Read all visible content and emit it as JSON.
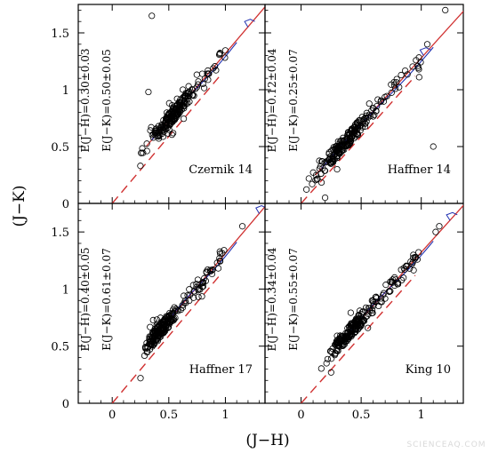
{
  "figure": {
    "xlabel": "(J−H)",
    "ylabel": "(J−K)",
    "watermark": "SCIENCEAQ.COM"
  },
  "colors": {
    "points": "#000000",
    "reddened_line": "#d03030",
    "intrinsic_line": "#d03030",
    "isochrone": "#2030b0",
    "frame": "#000000"
  },
  "chart_data": [
    {
      "type": "scatter",
      "name": "Czernik 14",
      "annotations": [
        "E(J−H)=0.30±0.03",
        "E(J−K)=0.50±0.05"
      ],
      "xlim": [
        -0.3,
        1.35
      ],
      "ylim": [
        0,
        1.75
      ],
      "xticks": [
        "0",
        "0.5",
        "1"
      ],
      "yticks": [
        "0",
        "0.5",
        "1",
        "1.5"
      ],
      "reddening": {
        "EJH": 0.3,
        "EJK": 0.5
      },
      "cluster_center": 0.55,
      "cluster_spread": 0.18,
      "extra_points": [
        [
          0.35,
          1.65
        ],
        [
          0.32,
          0.98
        ]
      ]
    },
    {
      "type": "scatter",
      "name": "Haffner 14",
      "annotations": [
        "E(J−H)=0.12±0.04",
        "E(J−K)=0.25±0.07"
      ],
      "xlim": [
        -0.3,
        1.35
      ],
      "ylim": [
        0,
        1.75
      ],
      "xticks": [
        "0",
        "0.5",
        "1"
      ],
      "yticks": [
        "0",
        "0.5",
        "1",
        "1.5"
      ],
      "reddening": {
        "EJH": 0.12,
        "EJK": 0.25
      },
      "cluster_center": 0.35,
      "cluster_spread": 0.2,
      "extra_points": [
        [
          1.05,
          1.4
        ],
        [
          1.2,
          1.7
        ],
        [
          1.1,
          0.5
        ],
        [
          0.3,
          0.3
        ],
        [
          0.2,
          0.05
        ]
      ]
    },
    {
      "type": "scatter",
      "name": "Haffner 17",
      "annotations": [
        "E(J−H)=0.40±0.05",
        "E(J−K)=0.61±0.07"
      ],
      "xlim": [
        -0.3,
        1.35
      ],
      "ylim": [
        0,
        1.75
      ],
      "xticks": [
        "0",
        "0.5",
        "1"
      ],
      "yticks": [
        "0",
        "0.5",
        "1",
        "1.5"
      ],
      "reddening": {
        "EJH": 0.4,
        "EJK": 0.61
      },
      "cluster_center": 0.42,
      "cluster_spread": 0.14,
      "extra_points": [
        [
          1.15,
          1.55
        ],
        [
          0.25,
          0.22
        ]
      ]
    },
    {
      "type": "scatter",
      "name": "King 10",
      "annotations": [
        "E(J−H)=0.34±0.04",
        "E(J−K)=0.55±0.07"
      ],
      "xlim": [
        -0.3,
        1.35
      ],
      "ylim": [
        0,
        1.75
      ],
      "xticks": [
        "0",
        "0.5",
        "1"
      ],
      "yticks": [
        "0",
        "0.5",
        "1",
        "1.5"
      ],
      "reddening": {
        "EJH": 0.34,
        "EJK": 0.55
      },
      "cluster_center": 0.4,
      "cluster_spread": 0.17,
      "extra_points": [
        [
          1.15,
          1.55
        ],
        [
          0.25,
          0.27
        ],
        [
          1.12,
          1.5
        ]
      ]
    }
  ]
}
